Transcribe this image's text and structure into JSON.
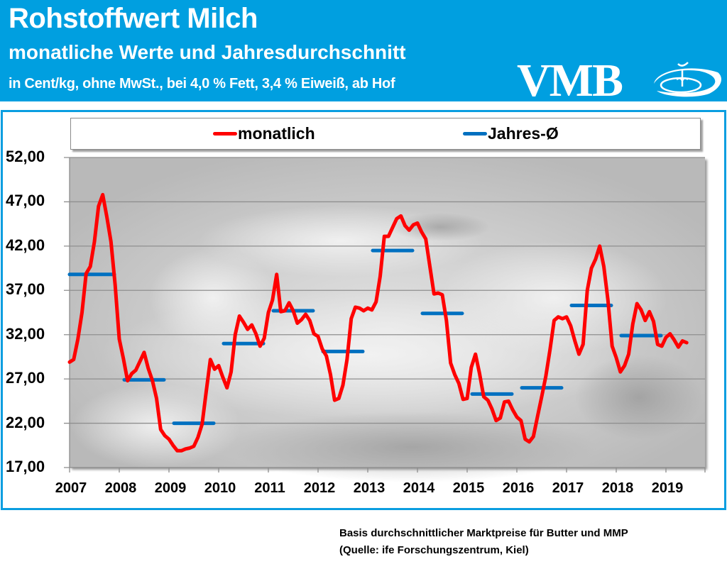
{
  "header": {
    "title": "Rohstoffwert Milch",
    "subtitle": "monatliche  Werte und Jahresdurchschnitt",
    "units_line": "in Cent/kg, ohne MwSt., bei 4,0 % Fett, 3,4 % Eiweiß, ab Hof",
    "logo_text": "VMB",
    "logo_icon": "milk-splash-logo-icon"
  },
  "colors": {
    "header_bg": "#009fe0",
    "frame_border": "#0a9ee0",
    "monthly_line": "#ff0000",
    "annual_line": "#0070c0"
  },
  "footnotes": {
    "line1": "Basis durchschnittlicher Marktpreise für Butter und MMP",
    "line2": "(Quelle: ife Forschungszentrum, Kiel)"
  },
  "chart_data": {
    "type": "line",
    "title": "Rohstoffwert Milch",
    "xlabel": "",
    "ylabel": "",
    "ylim": [
      17,
      52
    ],
    "yticks": [
      "52,00",
      "47,00",
      "42,00",
      "37,00",
      "32,00",
      "27,00",
      "22,00",
      "17,00"
    ],
    "ytick_values": [
      52,
      47,
      42,
      37,
      32,
      27,
      22,
      17
    ],
    "xticks": [
      "2007",
      "2008",
      "2009",
      "2010",
      "2011",
      "2012",
      "2013",
      "2014",
      "2015",
      "2016",
      "2017",
      "2018",
      "2019"
    ],
    "x_start": "2007-01",
    "x_frequency": "monthly",
    "grid": "horizontal",
    "legend_position": "top",
    "legend": [
      "monatlich",
      "Jahres-Ø"
    ],
    "series": [
      {
        "name": "monatlich",
        "color": "#ff0000",
        "values": [
          28.9,
          29.2,
          31.5,
          34.5,
          38.9,
          39.7,
          42.5,
          46.5,
          47.8,
          45.3,
          42.5,
          37.6,
          31.5,
          29.3,
          26.8,
          27.6,
          28.0,
          29.0,
          30.0,
          28.2,
          26.8,
          24.8,
          21.3,
          20.6,
          20.2,
          19.5,
          18.9,
          18.9,
          19.1,
          19.2,
          19.4,
          20.4,
          21.9,
          25.6,
          29.2,
          28.1,
          28.5,
          27.2,
          26.0,
          27.8,
          32.0,
          34.1,
          33.4,
          32.6,
          33.1,
          32.1,
          30.7,
          31.6,
          34.5,
          35.9,
          38.8,
          34.6,
          34.7,
          35.6,
          34.7,
          33.3,
          33.7,
          34.3,
          33.6,
          32.1,
          31.8,
          30.4,
          29.6,
          27.5,
          24.6,
          24.8,
          26.3,
          29.2,
          33.8,
          35.1,
          35.0,
          34.7,
          35.0,
          34.8,
          35.7,
          38.6,
          43.1,
          43.1,
          44.1,
          45.1,
          45.4,
          44.3,
          43.8,
          44.4,
          44.6,
          43.6,
          42.8,
          39.7,
          36.6,
          36.7,
          36.5,
          33.6,
          28.8,
          27.5,
          26.5,
          24.7,
          24.8,
          28.3,
          29.8,
          27.6,
          25.0,
          24.6,
          23.6,
          22.3,
          22.6,
          24.4,
          24.5,
          23.5,
          22.7,
          22.3,
          20.2,
          19.9,
          20.5,
          22.8,
          25.0,
          27.3,
          30.3,
          33.6,
          34.0,
          33.8,
          34.0,
          33.0,
          31.3,
          29.8,
          30.9,
          37.0,
          39.5,
          40.5,
          42.0,
          39.7,
          35.9,
          30.7,
          29.4,
          27.8,
          28.5,
          29.8,
          33.2,
          35.5,
          34.8,
          33.6,
          34.6,
          33.5,
          30.9,
          30.7,
          31.7,
          32.1,
          31.4,
          30.6,
          31.3,
          31.1
        ]
      },
      {
        "name": "Jahres-Ø",
        "color": "#0070c0",
        "years": [
          "2007",
          "2008",
          "2009",
          "2010",
          "2011",
          "2012",
          "2013",
          "2014",
          "2015",
          "2016",
          "2017",
          "2018"
        ],
        "values": [
          38.8,
          26.9,
          22.0,
          31.0,
          34.7,
          30.1,
          41.5,
          34.4,
          25.3,
          26.0,
          35.3,
          31.9
        ]
      }
    ]
  }
}
